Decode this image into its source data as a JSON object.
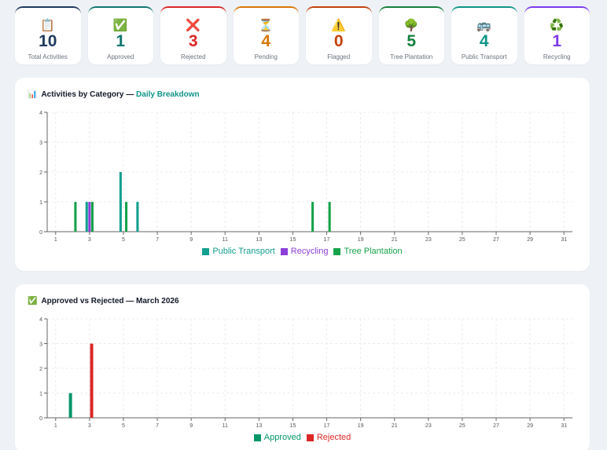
{
  "stats": [
    {
      "icon": "📋",
      "icon_name": "clipboard-icon",
      "value": "10",
      "label": "Total Activities",
      "color": "#1e3a5f"
    },
    {
      "icon": "✅",
      "icon_name": "check-icon",
      "value": "1",
      "label": "Approved",
      "color": "#0f766e"
    },
    {
      "icon": "❌",
      "icon_name": "cross-icon",
      "value": "3",
      "label": "Rejected",
      "color": "#dc2626"
    },
    {
      "icon": "⏳",
      "icon_name": "hourglass-icon",
      "value": "4",
      "label": "Pending",
      "color": "#d97706"
    },
    {
      "icon": "⚠️",
      "icon_name": "warning-icon",
      "value": "0",
      "label": "Flagged",
      "color": "#c2410c"
    },
    {
      "icon": "🌳",
      "icon_name": "tree-icon",
      "value": "5",
      "label": "Tree Plantation",
      "color": "#15803d"
    },
    {
      "icon": "🚌",
      "icon_name": "bus-icon",
      "value": "4",
      "label": "Public Transport",
      "color": "#0f9488"
    },
    {
      "icon": "♻️",
      "icon_name": "recycle-icon",
      "value": "1",
      "label": "Recycling",
      "color": "#7c3aed"
    }
  ],
  "category_panel": {
    "icon": "📊",
    "title": "Activities by Category — ",
    "title_accent": "Daily Breakdown"
  },
  "status_panel": {
    "icon": "✅",
    "title": "Approved vs Rejected — March 2026"
  },
  "chart_data": [
    {
      "type": "bar",
      "x": [
        1,
        2,
        3,
        4,
        5,
        6,
        7,
        8,
        9,
        10,
        11,
        12,
        13,
        14,
        15,
        16,
        17,
        18,
        19,
        20,
        21,
        22,
        23,
        24,
        25,
        26,
        27,
        28,
        29,
        30,
        31
      ],
      "xticks": [
        "1",
        "3",
        "5",
        "7",
        "9",
        "11",
        "13",
        "15",
        "17",
        "19",
        "21",
        "23",
        "25",
        "27",
        "29",
        "31"
      ],
      "yticks": [
        "0",
        "1",
        "2",
        "3",
        "4"
      ],
      "ylim": [
        0,
        4
      ],
      "grid": true,
      "legend": "bottom",
      "series": [
        {
          "name": "Public Transport",
          "color": "#14a090",
          "values": [
            0,
            0,
            1,
            0,
            2,
            1,
            0,
            0,
            0,
            0,
            0,
            0,
            0,
            0,
            0,
            0,
            0,
            0,
            0,
            0,
            0,
            0,
            0,
            0,
            0,
            0,
            0,
            0,
            0,
            0,
            0
          ]
        },
        {
          "name": "Recycling",
          "color": "#8b3fd8",
          "values": [
            0,
            0,
            1,
            0,
            0,
            0,
            0,
            0,
            0,
            0,
            0,
            0,
            0,
            0,
            0,
            0,
            0,
            0,
            0,
            0,
            0,
            0,
            0,
            0,
            0,
            0,
            0,
            0,
            0,
            0,
            0
          ]
        },
        {
          "name": "Tree Plantation",
          "color": "#16a34a",
          "values": [
            0,
            1,
            1,
            0,
            1,
            0,
            0,
            0,
            0,
            0,
            0,
            0,
            0,
            0,
            0,
            1,
            1,
            0,
            0,
            0,
            0,
            0,
            0,
            0,
            0,
            0,
            0,
            0,
            0,
            0,
            0
          ]
        }
      ]
    },
    {
      "type": "bar",
      "x": [
        1,
        2,
        3,
        4,
        5,
        6,
        7,
        8,
        9,
        10,
        11,
        12,
        13,
        14,
        15,
        16,
        17,
        18,
        19,
        20,
        21,
        22,
        23,
        24,
        25,
        26,
        27,
        28,
        29,
        30,
        31
      ],
      "xticks": [
        "1",
        "3",
        "5",
        "7",
        "9",
        "11",
        "13",
        "15",
        "17",
        "19",
        "21",
        "23",
        "25",
        "27",
        "29",
        "31"
      ],
      "yticks": [
        "0",
        "1",
        "2",
        "3",
        "4"
      ],
      "ylim": [
        0,
        4
      ],
      "grid": true,
      "legend": "bottom",
      "series": [
        {
          "name": "Approved",
          "color": "#059669",
          "values": [
            0,
            1,
            0,
            0,
            0,
            0,
            0,
            0,
            0,
            0,
            0,
            0,
            0,
            0,
            0,
            0,
            0,
            0,
            0,
            0,
            0,
            0,
            0,
            0,
            0,
            0,
            0,
            0,
            0,
            0,
            0
          ]
        },
        {
          "name": "Rejected",
          "color": "#dc2626",
          "values": [
            0,
            0,
            3,
            0,
            0,
            0,
            0,
            0,
            0,
            0,
            0,
            0,
            0,
            0,
            0,
            0,
            0,
            0,
            0,
            0,
            0,
            0,
            0,
            0,
            0,
            0,
            0,
            0,
            0,
            0,
            0
          ]
        }
      ]
    }
  ]
}
